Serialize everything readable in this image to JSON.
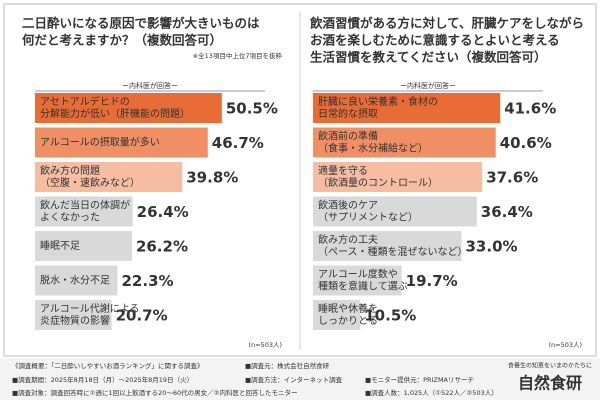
{
  "chart_data": [
    {
      "type": "bar",
      "orientation": "horizontal",
      "title": [
        "二日酔いになる原因で影響が大きいものは",
        "何だと考えますか？（複数回答可）"
      ],
      "note": "※全13項目中上位7項目を抜粋",
      "subtitle": "ー内科医が回答ー",
      "categories": [
        [
          "アセトアルデヒドの",
          "分解能力が低い（肝機能の問題）"
        ],
        [
          "アルコールの摂取量が多い"
        ],
        [
          "飲み方の問題",
          "（空腹・速飲みなど）"
        ],
        [
          "飲んだ当日の体調が",
          "よくなかった"
        ],
        [
          "睡眠不足"
        ],
        [
          "脱水・水分不足"
        ],
        [
          "アルコール代謝による",
          "炎症物質の影響"
        ]
      ],
      "values": [
        50.5,
        46.7,
        39.8,
        26.4,
        26.2,
        22.3,
        20.7
      ],
      "value_labels": [
        "50.5%",
        "46.7%",
        "39.8%",
        "26.4%",
        "26.2%",
        "22.3%",
        "20.7%"
      ],
      "colors": [
        "#e86c35",
        "#f08f64",
        "#f7bda3",
        "#d9d9d9",
        "#d9d9d9",
        "#d9d9d9",
        "#d9d9d9"
      ],
      "sample": "(n=503人)"
    },
    {
      "type": "bar",
      "orientation": "horizontal",
      "title": [
        "飲酒習慣がある方に対して、肝臓ケアをしながら",
        "お酒を楽しむために意識するとよいと考える",
        "生活習慣を教えてください（複数回答可）"
      ],
      "subtitle": "ー内科医が回答ー",
      "categories": [
        [
          "肝臓に良い栄養素・食材の",
          "日常的な摂取"
        ],
        [
          "飲酒前の準備",
          "（食事・水分補給など）"
        ],
        [
          "適量を守る",
          "（飲酒量のコントロール）"
        ],
        [
          "飲酒後のケア",
          "（サプリメントなど）"
        ],
        [
          "飲み方の工夫",
          "（ペース・種類を混ぜないなど）"
        ],
        [
          "アルコール度数や",
          "種類を意識して選ぶ"
        ],
        [
          "睡眠や休養を",
          "しっかりとる"
        ]
      ],
      "values": [
        41.6,
        40.6,
        37.6,
        36.4,
        33.0,
        19.7,
        10.5
      ],
      "value_labels": [
        "41.6%",
        "40.6%",
        "37.6%",
        "36.4%",
        "33.0%",
        "19.7%",
        "10.5%"
      ],
      "colors": [
        "#e86c35",
        "#f08f64",
        "#f7bda3",
        "#d9d9d9",
        "#d9d9d9",
        "#d9d9d9",
        "#d9d9d9"
      ],
      "sample": "(n=503人)"
    }
  ],
  "footer": {
    "lines": [
      "《調査概要：「二日酔いしやすいお酒ランキング」に関する調査》",
      "■調査元：株式会社自然食研",
      "■調査期間：2025年8月18日（月）～2025年8月19日（火）",
      "■調査方法：インターネット調査",
      "■モニター提供元：PRIZMAリサーチ",
      "■調査対象：調査回答時に①週に1回以上飲酒する20～60代の男女／②内科医と回答したモニター",
      "■調査人数：1,025人（①522人／②503人）"
    ],
    "tagline": "食養生の知恵をいまのかたちに",
    "logo": "自然食研"
  }
}
